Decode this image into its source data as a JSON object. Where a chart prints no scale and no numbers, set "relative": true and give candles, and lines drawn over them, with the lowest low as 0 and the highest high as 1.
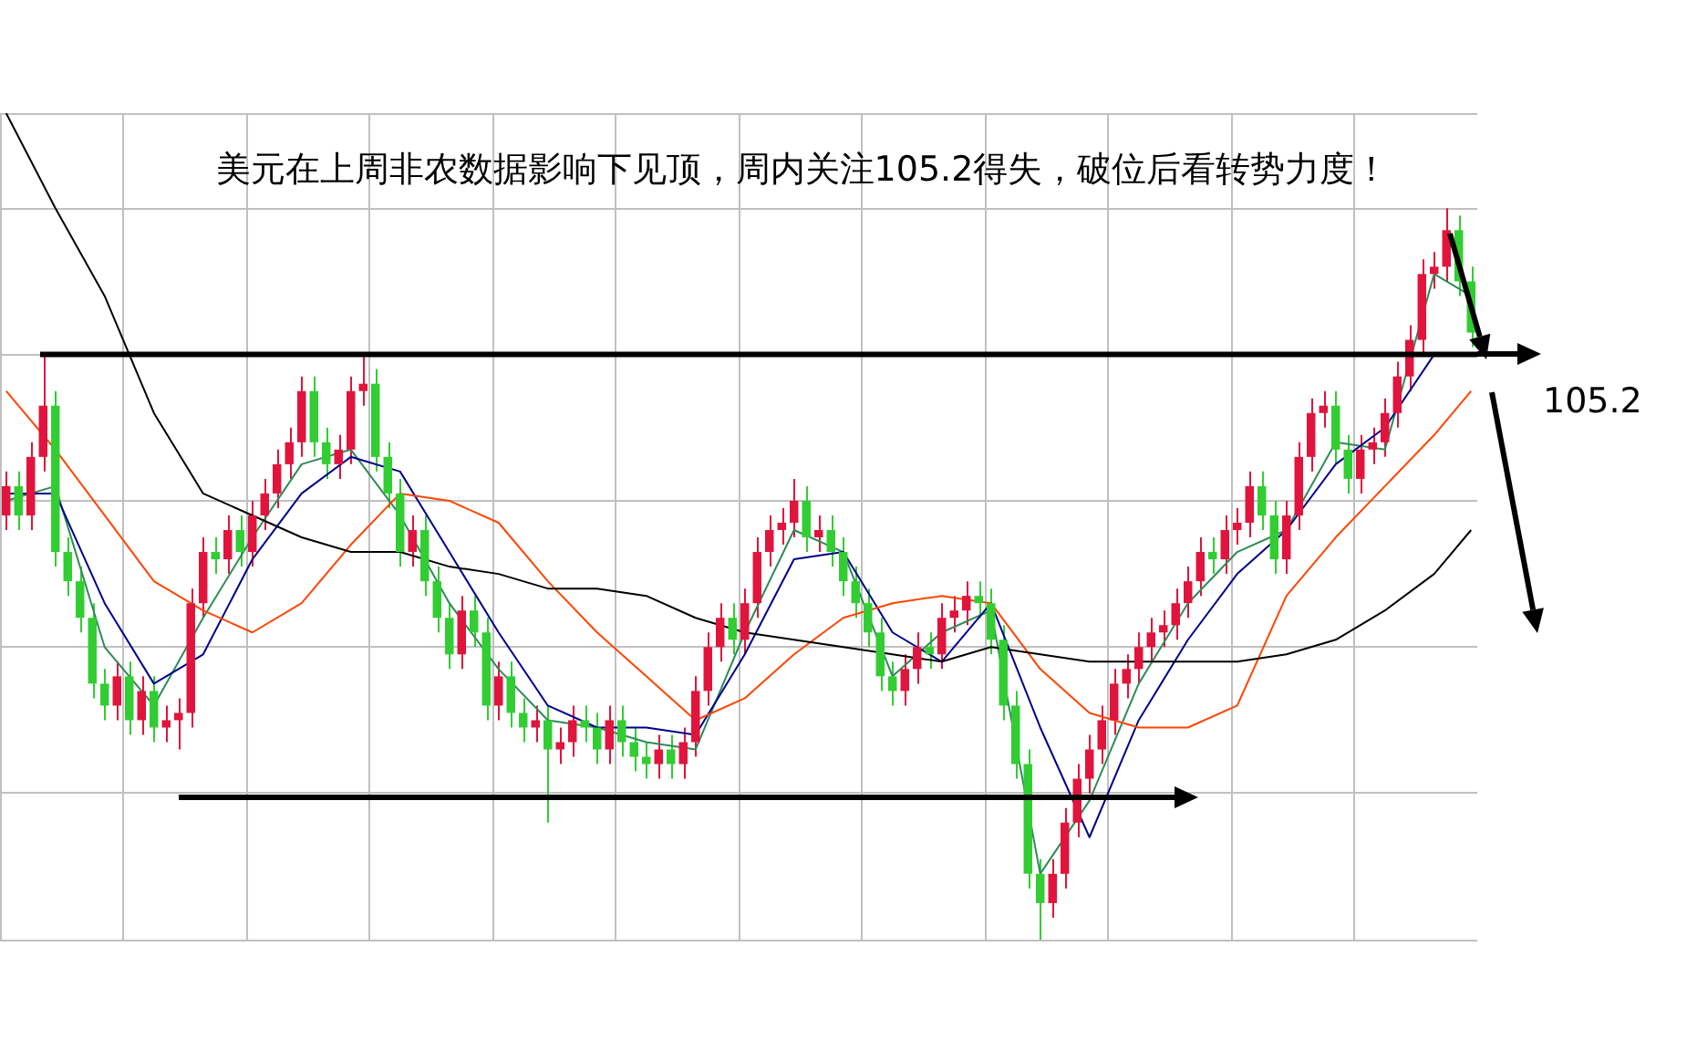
{
  "chart_data": {
    "type": "candlestick",
    "title": "美元在上周非农数据影响下见顶，周内关注105.2得失，破位后看转势力度！",
    "relative": true,
    "grid": true,
    "annotations": [
      "105.2"
    ],
    "categories": [
      null,
      null,
      null,
      null,
      null,
      null,
      null,
      null,
      null,
      null,
      null,
      null,
      null,
      null,
      null,
      null,
      null,
      null,
      null,
      null,
      null,
      null,
      null,
      null,
      null,
      null,
      null,
      null,
      null,
      null,
      null,
      null,
      null,
      null,
      null,
      null,
      null,
      null,
      null,
      null,
      null,
      null,
      null,
      null,
      null,
      null,
      null,
      null,
      null,
      null,
      null,
      null,
      null,
      null,
      null,
      null,
      null,
      null,
      null,
      null,
      null,
      null,
      null,
      null,
      null,
      null,
      null,
      null,
      null,
      null,
      null,
      null,
      null,
      null,
      null,
      null,
      null,
      null,
      null,
      null,
      null,
      null,
      null,
      null,
      null,
      null,
      null,
      null,
      null,
      null,
      null,
      null,
      null,
      null,
      null,
      null,
      null,
      null,
      null,
      null,
      null,
      null,
      null,
      null,
      null,
      null,
      null,
      null,
      null,
      null,
      null,
      null,
      null,
      null,
      null,
      null,
      null,
      null,
      null,
      null
    ],
    "ohlc": [
      [
        0.58,
        0.64,
        0.56,
        0.62
      ],
      [
        0.62,
        0.64,
        0.56,
        0.58
      ],
      [
        0.58,
        0.68,
        0.56,
        0.66
      ],
      [
        0.66,
        0.8,
        0.64,
        0.73
      ],
      [
        0.73,
        0.75,
        0.51,
        0.53
      ],
      [
        0.53,
        0.55,
        0.47,
        0.49
      ],
      [
        0.49,
        0.51,
        0.42,
        0.44
      ],
      [
        0.44,
        0.46,
        0.33,
        0.35
      ],
      [
        0.35,
        0.37,
        0.3,
        0.32
      ],
      [
        0.32,
        0.38,
        0.3,
        0.36
      ],
      [
        0.36,
        0.38,
        0.28,
        0.3
      ],
      [
        0.3,
        0.36,
        0.28,
        0.34
      ],
      [
        0.34,
        0.36,
        0.27,
        0.29
      ],
      [
        0.29,
        0.32,
        0.27,
        0.3
      ],
      [
        0.3,
        0.33,
        0.26,
        0.31
      ],
      [
        0.31,
        0.48,
        0.29,
        0.46
      ],
      [
        0.46,
        0.55,
        0.44,
        0.53
      ],
      [
        0.53,
        0.55,
        0.5,
        0.52
      ],
      [
        0.52,
        0.58,
        0.5,
        0.56
      ],
      [
        0.56,
        0.58,
        0.51,
        0.53
      ],
      [
        0.53,
        0.6,
        0.51,
        0.58
      ],
      [
        0.58,
        0.63,
        0.56,
        0.61
      ],
      [
        0.61,
        0.67,
        0.59,
        0.65
      ],
      [
        0.65,
        0.7,
        0.63,
        0.68
      ],
      [
        0.68,
        0.77,
        0.66,
        0.75
      ],
      [
        0.75,
        0.77,
        0.66,
        0.68
      ],
      [
        0.68,
        0.7,
        0.63,
        0.65
      ],
      [
        0.65,
        0.69,
        0.63,
        0.67
      ],
      [
        0.67,
        0.77,
        0.65,
        0.75
      ],
      [
        0.75,
        0.8,
        0.73,
        0.76
      ],
      [
        0.76,
        0.78,
        0.64,
        0.66
      ],
      [
        0.66,
        0.68,
        0.59,
        0.61
      ],
      [
        0.61,
        0.63,
        0.51,
        0.53
      ],
      [
        0.53,
        0.58,
        0.51,
        0.56
      ],
      [
        0.56,
        0.58,
        0.47,
        0.49
      ],
      [
        0.49,
        0.51,
        0.42,
        0.44
      ],
      [
        0.44,
        0.46,
        0.37,
        0.39
      ],
      [
        0.39,
        0.47,
        0.37,
        0.45
      ],
      [
        0.45,
        0.47,
        0.4,
        0.42
      ],
      [
        0.42,
        0.44,
        0.3,
        0.32
      ],
      [
        0.32,
        0.38,
        0.3,
        0.36
      ],
      [
        0.36,
        0.38,
        0.29,
        0.31
      ],
      [
        0.31,
        0.33,
        0.27,
        0.29
      ],
      [
        0.29,
        0.32,
        0.27,
        0.3
      ],
      [
        0.3,
        0.32,
        0.16,
        0.26
      ],
      [
        0.26,
        0.29,
        0.24,
        0.27
      ],
      [
        0.27,
        0.32,
        0.25,
        0.3
      ],
      [
        0.3,
        0.32,
        0.27,
        0.29
      ],
      [
        0.29,
        0.31,
        0.24,
        0.26
      ],
      [
        0.26,
        0.32,
        0.24,
        0.3
      ],
      [
        0.3,
        0.32,
        0.25,
        0.27
      ],
      [
        0.27,
        0.29,
        0.23,
        0.25
      ],
      [
        0.25,
        0.27,
        0.22,
        0.24
      ],
      [
        0.24,
        0.28,
        0.22,
        0.26
      ],
      [
        0.26,
        0.28,
        0.22,
        0.24
      ],
      [
        0.24,
        0.29,
        0.22,
        0.27
      ],
      [
        0.27,
        0.36,
        0.25,
        0.34
      ],
      [
        0.34,
        0.42,
        0.32,
        0.4
      ],
      [
        0.4,
        0.46,
        0.38,
        0.44
      ],
      [
        0.44,
        0.46,
        0.39,
        0.41
      ],
      [
        0.41,
        0.48,
        0.39,
        0.46
      ],
      [
        0.46,
        0.55,
        0.44,
        0.53
      ],
      [
        0.53,
        0.58,
        0.51,
        0.56
      ],
      [
        0.56,
        0.59,
        0.54,
        0.57
      ],
      [
        0.57,
        0.63,
        0.55,
        0.6
      ],
      [
        0.6,
        0.62,
        0.53,
        0.55
      ],
      [
        0.55,
        0.58,
        0.53,
        0.56
      ],
      [
        0.56,
        0.58,
        0.51,
        0.53
      ],
      [
        0.53,
        0.55,
        0.47,
        0.49
      ],
      [
        0.49,
        0.51,
        0.44,
        0.46
      ],
      [
        0.46,
        0.48,
        0.4,
        0.42
      ],
      [
        0.42,
        0.44,
        0.34,
        0.36
      ],
      [
        0.36,
        0.38,
        0.32,
        0.34
      ],
      [
        0.34,
        0.39,
        0.32,
        0.37
      ],
      [
        0.37,
        0.42,
        0.35,
        0.4
      ],
      [
        0.4,
        0.42,
        0.37,
        0.39
      ],
      [
        0.39,
        0.46,
        0.37,
        0.44
      ],
      [
        0.44,
        0.47,
        0.42,
        0.45
      ],
      [
        0.45,
        0.49,
        0.43,
        0.47
      ],
      [
        0.47,
        0.49,
        0.44,
        0.46
      ],
      [
        0.46,
        0.48,
        0.39,
        0.41
      ],
      [
        0.41,
        0.43,
        0.3,
        0.32
      ],
      [
        0.32,
        0.34,
        0.22,
        0.24
      ],
      [
        0.24,
        0.26,
        0.07,
        0.09
      ],
      [
        0.09,
        0.11,
        0.0,
        0.05
      ],
      [
        0.05,
        0.11,
        0.03,
        0.09
      ],
      [
        0.09,
        0.18,
        0.07,
        0.16
      ],
      [
        0.16,
        0.24,
        0.14,
        0.22
      ],
      [
        0.22,
        0.28,
        0.2,
        0.26
      ],
      [
        0.26,
        0.32,
        0.24,
        0.3
      ],
      [
        0.3,
        0.37,
        0.28,
        0.35
      ],
      [
        0.35,
        0.39,
        0.33,
        0.37
      ],
      [
        0.37,
        0.42,
        0.35,
        0.4
      ],
      [
        0.4,
        0.44,
        0.38,
        0.42
      ],
      [
        0.42,
        0.45,
        0.4,
        0.43
      ],
      [
        0.43,
        0.48,
        0.41,
        0.46
      ],
      [
        0.46,
        0.51,
        0.44,
        0.49
      ],
      [
        0.49,
        0.55,
        0.47,
        0.53
      ],
      [
        0.53,
        0.55,
        0.5,
        0.52
      ],
      [
        0.52,
        0.58,
        0.5,
        0.56
      ],
      [
        0.56,
        0.59,
        0.54,
        0.57
      ],
      [
        0.57,
        0.64,
        0.55,
        0.62
      ],
      [
        0.62,
        0.64,
        0.56,
        0.58
      ],
      [
        0.58,
        0.6,
        0.5,
        0.52
      ],
      [
        0.52,
        0.6,
        0.5,
        0.58
      ],
      [
        0.58,
        0.68,
        0.56,
        0.66
      ],
      [
        0.66,
        0.74,
        0.64,
        0.72
      ],
      [
        0.72,
        0.75,
        0.7,
        0.73
      ],
      [
        0.73,
        0.75,
        0.65,
        0.67
      ],
      [
        0.67,
        0.69,
        0.61,
        0.63
      ],
      [
        0.63,
        0.69,
        0.61,
        0.67
      ],
      [
        0.67,
        0.7,
        0.65,
        0.68
      ],
      [
        0.68,
        0.74,
        0.66,
        0.72
      ],
      [
        0.72,
        0.79,
        0.7,
        0.77
      ],
      [
        0.77,
        0.84,
        0.75,
        0.82
      ],
      [
        0.82,
        0.93,
        0.8,
        0.91
      ],
      [
        0.91,
        0.94,
        0.89,
        0.92
      ],
      [
        0.92,
        1.0,
        0.9,
        0.97
      ],
      [
        0.97,
        0.99,
        0.88,
        0.9
      ],
      [
        0.9,
        0.92,
        0.81,
        0.83
      ]
    ],
    "colors": [
      "#e0143c",
      "#32cd32",
      "#e0143c",
      "#e0143c",
      "#32cd32",
      "#32cd32",
      "#32cd32",
      "#32cd32",
      "#32cd32",
      "#e0143c",
      "#32cd32",
      "#e0143c",
      "#32cd32",
      "#e0143c",
      "#e0143c",
      "#e0143c",
      "#e0143c",
      "#32cd32",
      "#e0143c",
      "#32cd32",
      "#e0143c",
      "#e0143c",
      "#e0143c",
      "#e0143c",
      "#e0143c",
      "#32cd32",
      "#32cd32",
      "#e0143c",
      "#e0143c",
      "#e0143c",
      "#32cd32",
      "#32cd32",
      "#32cd32",
      "#e0143c",
      "#32cd32",
      "#32cd32",
      "#32cd32",
      "#e0143c",
      "#32cd32",
      "#32cd32",
      "#e0143c",
      "#32cd32",
      "#32cd32",
      "#e0143c",
      "#32cd32",
      "#e0143c",
      "#e0143c",
      "#32cd32",
      "#32cd32",
      "#e0143c",
      "#32cd32",
      "#32cd32",
      "#32cd32",
      "#e0143c",
      "#32cd32",
      "#e0143c",
      "#e0143c",
      "#e0143c",
      "#e0143c",
      "#32cd32",
      "#e0143c",
      "#e0143c",
      "#e0143c",
      "#e0143c",
      "#e0143c",
      "#32cd32",
      "#e0143c",
      "#32cd32",
      "#32cd32",
      "#32cd32",
      "#32cd32",
      "#32cd32",
      "#32cd32",
      "#e0143c",
      "#e0143c",
      "#32cd32",
      "#e0143c",
      "#e0143c",
      "#e0143c",
      "#32cd32",
      "#32cd32",
      "#32cd32",
      "#32cd32",
      "#32cd32",
      "#32cd32",
      "#e0143c",
      "#e0143c",
      "#e0143c",
      "#e0143c",
      "#e0143c",
      "#e0143c",
      "#e0143c",
      "#e0143c",
      "#e0143c",
      "#e0143c",
      "#e0143c",
      "#e0143c",
      "#e0143c",
      "#32cd32",
      "#e0143c",
      "#e0143c",
      "#e0143c",
      "#32cd32",
      "#32cd32",
      "#e0143c",
      "#e0143c",
      "#e0143c",
      "#e0143c",
      "#32cd32",
      "#32cd32",
      "#e0143c",
      "#e0143c",
      "#e0143c",
      "#e0143c",
      "#e0143c",
      "#e0143c",
      "#e0143c",
      "#e0143c",
      "#32cd32",
      "#32cd32"
    ],
    "series": [
      {
        "type": "line",
        "color": "#000000",
        "values": [
          1.13,
          null,
          null,
          null,
          1.0,
          null,
          null,
          null,
          0.88,
          null,
          null,
          null,
          0.72,
          null,
          null,
          null,
          0.61,
          null,
          null,
          null,
          0.58,
          null,
          null,
          null,
          0.55,
          null,
          null,
          null,
          0.53,
          null,
          null,
          null,
          0.53,
          null,
          null,
          null,
          0.51,
          null,
          null,
          null,
          0.5,
          null,
          null,
          null,
          0.48,
          null,
          null,
          null,
          0.48,
          null,
          null,
          null,
          0.47,
          null,
          null,
          null,
          0.44,
          null,
          null,
          null,
          0.42,
          null,
          null,
          null,
          0.41,
          null,
          null,
          null,
          0.4,
          null,
          null,
          null,
          0.39,
          null,
          null,
          null,
          0.38,
          null,
          null,
          null,
          0.4,
          null,
          null,
          null,
          0.39,
          null,
          null,
          null,
          0.38,
          null,
          null,
          null,
          0.38,
          null,
          null,
          null,
          0.38,
          null,
          null,
          null,
          0.38,
          null,
          null,
          null,
          0.39,
          null,
          null,
          null,
          0.41,
          null,
          null,
          null,
          0.45,
          null,
          null,
          null,
          0.5,
          null,
          null,
          0.56
        ]
      },
      {
        "type": "line",
        "color": "#ff4500",
        "values": [
          0.75,
          null,
          null,
          null,
          0.67,
          null,
          null,
          null,
          0.58,
          null,
          null,
          null,
          0.49,
          null,
          null,
          null,
          0.45,
          null,
          null,
          null,
          0.42,
          null,
          null,
          null,
          0.46,
          null,
          null,
          null,
          0.54,
          null,
          null,
          null,
          0.61,
          null,
          null,
          null,
          0.6,
          null,
          null,
          null,
          0.57,
          null,
          null,
          null,
          0.49,
          null,
          null,
          null,
          0.42,
          null,
          null,
          null,
          0.36,
          null,
          null,
          null,
          0.3,
          null,
          null,
          null,
          0.33,
          null,
          null,
          null,
          0.39,
          null,
          null,
          null,
          0.44,
          null,
          null,
          null,
          0.46,
          null,
          null,
          null,
          0.47,
          null,
          null,
          null,
          0.46,
          null,
          null,
          null,
          0.37,
          null,
          null,
          null,
          0.31,
          null,
          null,
          null,
          0.29,
          null,
          null,
          null,
          0.29,
          null,
          null,
          null,
          0.32,
          null,
          null,
          null,
          0.47,
          null,
          null,
          null,
          0.55,
          null,
          null,
          null,
          0.62,
          null,
          null,
          null,
          0.69,
          null,
          null,
          0.75
        ]
      },
      {
        "type": "line",
        "color": "#00008b",
        "values": [
          0.61,
          null,
          null,
          null,
          0.61,
          null,
          null,
          null,
          0.46,
          null,
          null,
          null,
          0.35,
          null,
          null,
          null,
          0.39,
          null,
          null,
          null,
          0.52,
          null,
          null,
          null,
          0.61,
          null,
          null,
          null,
          0.66,
          null,
          null,
          null,
          0.64,
          null,
          null,
          null,
          0.53,
          null,
          null,
          null,
          0.42,
          null,
          null,
          null,
          0.32,
          null,
          null,
          null,
          0.29,
          null,
          null,
          null,
          0.29,
          null,
          null,
          null,
          0.28,
          null,
          null,
          null,
          0.39,
          null,
          null,
          null,
          0.52,
          null,
          null,
          null,
          0.53,
          null,
          null,
          null,
          0.42,
          null,
          null,
          null,
          0.38,
          null,
          null,
          null,
          0.46,
          null,
          null,
          null,
          0.29,
          null,
          null,
          null,
          0.14,
          null,
          null,
          null,
          0.3,
          null,
          null,
          null,
          0.41,
          null,
          null,
          null,
          0.5,
          null,
          null,
          null,
          0.56,
          null,
          null,
          null,
          0.65,
          null,
          null,
          null,
          0.7,
          null,
          null,
          null,
          0.8,
          null,
          null,
          null
        ]
      },
      {
        "type": "line",
        "color": "#2e8b57",
        "values": [
          0.6,
          null,
          null,
          null,
          0.62,
          null,
          null,
          null,
          0.4,
          null,
          null,
          null,
          0.32,
          null,
          null,
          null,
          0.44,
          null,
          null,
          null,
          0.55,
          null,
          null,
          null,
          0.65,
          null,
          null,
          null,
          0.67,
          null,
          null,
          null,
          0.58,
          null,
          null,
          null,
          0.46,
          null,
          null,
          null,
          0.37,
          null,
          null,
          null,
          0.3,
          null,
          null,
          null,
          0.29,
          null,
          null,
          null,
          0.27,
          null,
          null,
          null,
          0.26,
          null,
          null,
          null,
          0.42,
          null,
          null,
          null,
          0.56,
          null,
          null,
          null,
          0.53,
          null,
          null,
          null,
          0.36,
          null,
          null,
          null,
          0.42,
          null,
          null,
          null,
          0.45,
          null,
          null,
          null,
          0.09,
          null,
          null,
          null,
          0.19,
          null,
          null,
          null,
          0.35,
          null,
          null,
          null,
          0.46,
          null,
          null,
          null,
          0.53,
          null,
          null,
          null,
          0.56,
          null,
          null,
          null,
          0.68,
          null,
          null,
          null,
          0.67,
          null,
          null,
          null,
          0.91,
          null,
          null,
          0.88
        ]
      }
    ],
    "ref_lines": [
      {
        "axis": "y",
        "value": 0.8,
        "color": "#000000"
      }
    ]
  }
}
